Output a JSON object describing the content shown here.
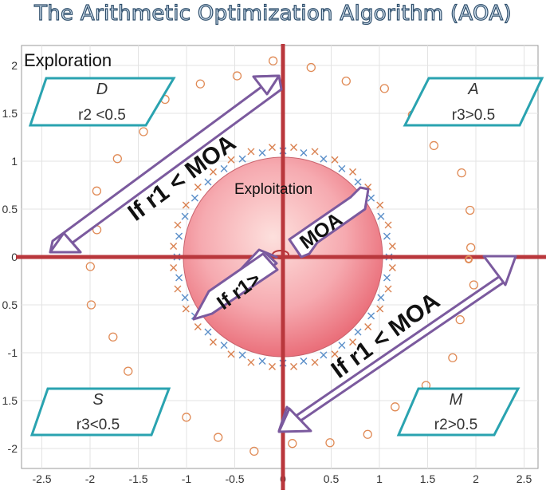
{
  "title": "The Arithmetic Optimization Algorithm (AOA)",
  "labels": {
    "exploration": "Exploration",
    "exploitation": "Exploitation",
    "arrow_upper_left": "If r1 < MOA",
    "arrow_lower_right": "If r1 < MOA",
    "inner_lower": "If r1>",
    "inner_upper": "MOA"
  },
  "boxes": {
    "d": {
      "op": "D",
      "cond": "r2 <0.5"
    },
    "a": {
      "op": "A",
      "cond": "r3>0.5"
    },
    "s": {
      "op": "S",
      "cond": "r3<0.5"
    },
    "m": {
      "op": "M",
      "cond": "r2>0.5"
    }
  },
  "axes": {
    "x_ticks": [
      "-2.5",
      "-2",
      "-1.5",
      "-1",
      "-0.5",
      "0",
      "0.5",
      "1",
      "1.5",
      "2",
      "2.5"
    ],
    "y_ticks": [
      "2",
      "1.5",
      "1",
      "0.5",
      "0",
      "0.5",
      "-1",
      "1.5",
      "-2"
    ]
  },
  "colors": {
    "axis_line": "#b9373c",
    "box_stroke": "#2aa3b0",
    "arrow_stroke": "#7b5a9e",
    "circle_marker": "#e08a55",
    "cross_blue": "#5b8fc9",
    "cross_orange": "#d9804f",
    "title_fill": "#d5e4f2",
    "title_stroke": "#2e4e6b"
  }
}
